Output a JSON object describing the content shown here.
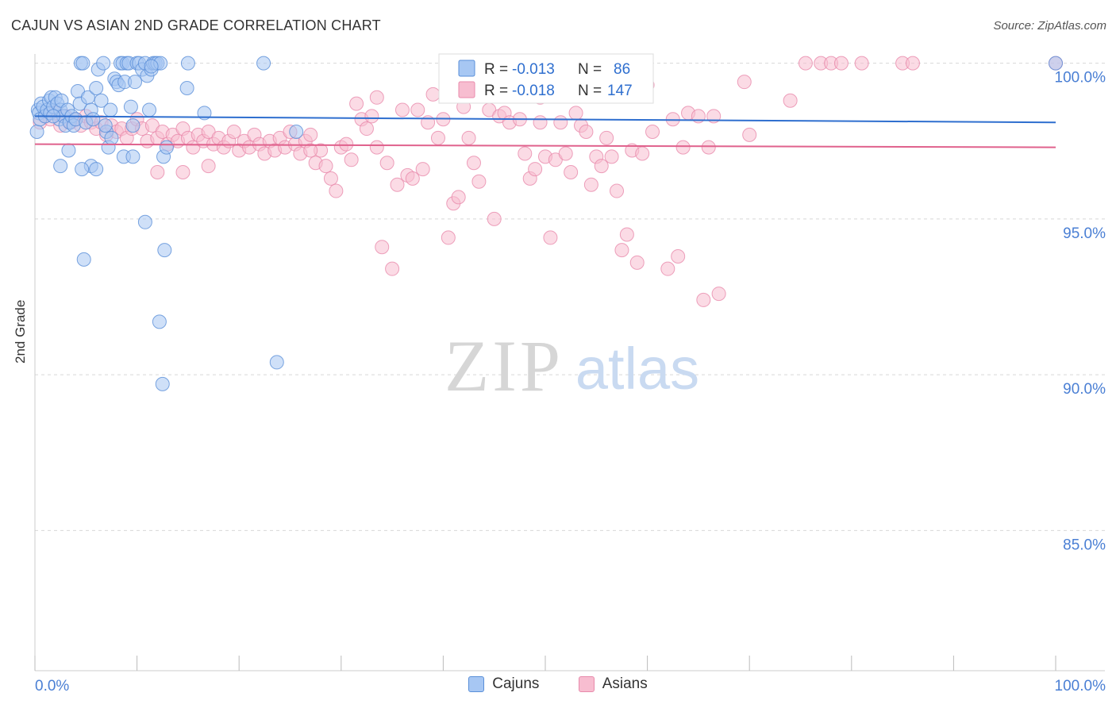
{
  "title": "CAJUN VS ASIAN 2ND GRADE CORRELATION CHART",
  "source": "Source: ZipAtlas.com",
  "watermark": {
    "zip": "ZIP",
    "atlas": "atlas"
  },
  "colors": {
    "cajuns_fill": "#a7c7f3",
    "cajuns_stroke": "#5a8fd8",
    "cajuns_line": "#2f6fcf",
    "asians_fill": "#f7bdd0",
    "asians_stroke": "#e88aab",
    "asians_line": "#e0628d",
    "axis_text": "#4a7fd4",
    "grid": "#d8d8d8"
  },
  "legend_stats": [
    {
      "r_label": "R =",
      "r_value": "-0.013",
      "n_label": "N =",
      "n_value": "86"
    },
    {
      "r_label": "R =",
      "r_value": "-0.018",
      "n_label": "N =",
      "n_value": "147"
    }
  ],
  "chart_data": {
    "type": "scatter",
    "title": "CAJUN VS ASIAN 2ND GRADE CORRELATION CHART",
    "xlabel": "",
    "ylabel": "2nd Grade",
    "xlim": [
      0,
      100
    ],
    "ylim": [
      80.5,
      100.5
    ],
    "x_tick_labels": [
      "0.0%",
      "100.0%"
    ],
    "y_ticks": [
      {
        "value": 100,
        "label": "100.0%"
      },
      {
        "value": 95,
        "label": "95.0%"
      },
      {
        "value": 90,
        "label": "90.0%"
      },
      {
        "value": 85,
        "label": "85.0%"
      }
    ],
    "grid": "horizontal dashed",
    "legend_position": "bottom",
    "series": [
      {
        "name": "Cajuns",
        "r": -0.013,
        "n": 86,
        "trend": {
          "x": [
            0,
            100
          ],
          "y": [
            98.3,
            98.1
          ]
        },
        "points": [
          [
            0.2,
            97.8
          ],
          [
            0.3,
            98.5
          ],
          [
            0.4,
            98.4
          ],
          [
            0.5,
            98.2
          ],
          [
            0.6,
            98.7
          ],
          [
            0.8,
            98.6
          ],
          [
            1.0,
            98.3
          ],
          [
            1.2,
            98.5
          ],
          [
            1.4,
            98.8
          ],
          [
            1.5,
            98.4
          ],
          [
            1.6,
            98.9
          ],
          [
            1.8,
            98.6
          ],
          [
            2.0,
            98.9
          ],
          [
            2.2,
            98.7
          ],
          [
            2.4,
            98.2
          ],
          [
            2.5,
            98.5
          ],
          [
            2.6,
            98.8
          ],
          [
            2.8,
            98.3
          ],
          [
            3.0,
            98.0
          ],
          [
            3.2,
            98.5
          ],
          [
            3.4,
            98.1
          ],
          [
            3.6,
            98.3
          ],
          [
            3.8,
            98.0
          ],
          [
            4.0,
            98.2
          ],
          [
            4.2,
            99.1
          ],
          [
            4.4,
            98.7
          ],
          [
            4.5,
            100.0
          ],
          [
            4.7,
            100.0
          ],
          [
            5.0,
            98.1
          ],
          [
            5.2,
            98.9
          ],
          [
            5.5,
            98.5
          ],
          [
            5.7,
            98.2
          ],
          [
            6.0,
            99.2
          ],
          [
            6.2,
            99.8
          ],
          [
            6.5,
            98.8
          ],
          [
            6.7,
            100.0
          ],
          [
            7.0,
            97.8
          ],
          [
            7.2,
            97.3
          ],
          [
            7.5,
            97.6
          ],
          [
            7.8,
            99.5
          ],
          [
            8.0,
            99.4
          ],
          [
            8.2,
            99.3
          ],
          [
            8.4,
            100.0
          ],
          [
            8.6,
            100.0
          ],
          [
            8.8,
            99.4
          ],
          [
            9.0,
            100.0
          ],
          [
            9.2,
            100.0
          ],
          [
            9.4,
            98.6
          ],
          [
            9.6,
            98.0
          ],
          [
            9.8,
            99.4
          ],
          [
            10.0,
            100.0
          ],
          [
            10.2,
            100.0
          ],
          [
            10.5,
            99.8
          ],
          [
            10.8,
            100.0
          ],
          [
            11.0,
            99.6
          ],
          [
            11.2,
            98.5
          ],
          [
            11.4,
            99.8
          ],
          [
            11.6,
            100.0
          ],
          [
            11.8,
            100.0
          ],
          [
            12.0,
            100.0
          ],
          [
            12.3,
            100.0
          ],
          [
            12.6,
            97.0
          ],
          [
            3.3,
            97.2
          ],
          [
            2.5,
            96.7
          ],
          [
            5.5,
            96.7
          ],
          [
            6.0,
            96.6
          ],
          [
            4.6,
            96.6
          ],
          [
            8.7,
            97.0
          ],
          [
            9.6,
            97.0
          ],
          [
            12.9,
            97.3
          ],
          [
            14.9,
            99.2
          ],
          [
            15.0,
            100.0
          ],
          [
            16.6,
            98.4
          ],
          [
            22.4,
            100.0
          ],
          [
            7.4,
            98.5
          ],
          [
            10.8,
            94.9
          ],
          [
            12.7,
            94.0
          ],
          [
            4.8,
            93.7
          ],
          [
            12.2,
            91.7
          ],
          [
            12.5,
            89.7
          ],
          [
            23.7,
            90.4
          ],
          [
            25.6,
            97.8
          ],
          [
            100.0,
            100.0
          ],
          [
            11.4,
            99.9
          ],
          [
            6.9,
            98.0
          ],
          [
            1.8,
            98.3
          ]
        ]
      },
      {
        "name": "Asians",
        "r": -0.018,
        "n": 147,
        "trend": {
          "x": [
            0,
            100
          ],
          "y": [
            97.4,
            97.3
          ]
        },
        "points": [
          [
            0.5,
            98.1
          ],
          [
            1.0,
            98.3
          ],
          [
            1.5,
            98.2
          ],
          [
            2.0,
            98.4
          ],
          [
            2.5,
            98.0
          ],
          [
            3.0,
            98.3
          ],
          [
            3.5,
            98.1
          ],
          [
            4.0,
            98.2
          ],
          [
            4.5,
            98.0
          ],
          [
            5.0,
            98.3
          ],
          [
            5.5,
            98.1
          ],
          [
            6.0,
            97.9
          ],
          [
            6.5,
            98.1
          ],
          [
            7.0,
            97.7
          ],
          [
            7.5,
            98.0
          ],
          [
            8.0,
            97.8
          ],
          [
            8.5,
            97.9
          ],
          [
            9.0,
            97.6
          ],
          [
            9.5,
            97.9
          ],
          [
            10.0,
            98.2
          ],
          [
            10.5,
            97.9
          ],
          [
            11.0,
            97.5
          ],
          [
            11.5,
            98.0
          ],
          [
            12.0,
            97.6
          ],
          [
            12.5,
            97.8
          ],
          [
            13.0,
            97.4
          ],
          [
            13.5,
            97.7
          ],
          [
            14.0,
            97.5
          ],
          [
            14.5,
            97.9
          ],
          [
            15.0,
            97.6
          ],
          [
            15.5,
            97.3
          ],
          [
            16.0,
            97.7
          ],
          [
            16.5,
            97.5
          ],
          [
            17.0,
            97.8
          ],
          [
            17.5,
            97.4
          ],
          [
            18.0,
            97.6
          ],
          [
            18.5,
            97.3
          ],
          [
            19.0,
            97.5
          ],
          [
            19.5,
            97.8
          ],
          [
            20.0,
            97.2
          ],
          [
            20.5,
            97.5
          ],
          [
            21.0,
            97.3
          ],
          [
            21.5,
            97.7
          ],
          [
            22.0,
            97.4
          ],
          [
            22.5,
            97.1
          ],
          [
            23.0,
            97.5
          ],
          [
            23.5,
            97.2
          ],
          [
            24.0,
            97.6
          ],
          [
            24.5,
            97.3
          ],
          [
            25.0,
            97.8
          ],
          [
            25.5,
            97.4
          ],
          [
            26.0,
            97.1
          ],
          [
            26.5,
            97.5
          ],
          [
            27.0,
            97.7
          ],
          [
            27.5,
            96.8
          ],
          [
            28.0,
            97.2
          ],
          [
            28.5,
            96.7
          ],
          [
            29.0,
            96.3
          ],
          [
            29.5,
            95.9
          ],
          [
            30.0,
            97.3
          ],
          [
            30.5,
            97.4
          ],
          [
            31.0,
            96.9
          ],
          [
            31.5,
            98.7
          ],
          [
            32.0,
            98.2
          ],
          [
            32.5,
            97.9
          ],
          [
            33.0,
            98.3
          ],
          [
            33.5,
            97.3
          ],
          [
            34.0,
            94.1
          ],
          [
            34.5,
            96.8
          ],
          [
            35.0,
            93.4
          ],
          [
            35.5,
            96.1
          ],
          [
            36.0,
            98.5
          ],
          [
            36.5,
            96.4
          ],
          [
            37.0,
            96.3
          ],
          [
            37.5,
            98.5
          ],
          [
            38.0,
            96.6
          ],
          [
            38.5,
            98.1
          ],
          [
            39.0,
            99.0
          ],
          [
            39.5,
            97.6
          ],
          [
            40.0,
            98.2
          ],
          [
            40.5,
            94.4
          ],
          [
            41.0,
            95.5
          ],
          [
            41.5,
            95.7
          ],
          [
            42.0,
            98.6
          ],
          [
            42.5,
            97.6
          ],
          [
            43.0,
            96.8
          ],
          [
            43.5,
            96.2
          ],
          [
            44.0,
            99.0
          ],
          [
            44.5,
            98.5
          ],
          [
            45.0,
            95.0
          ],
          [
            45.5,
            98.3
          ],
          [
            46.0,
            98.4
          ],
          [
            46.5,
            98.1
          ],
          [
            47.0,
            99.1
          ],
          [
            47.5,
            98.2
          ],
          [
            48.0,
            97.1
          ],
          [
            48.5,
            96.3
          ],
          [
            49.0,
            96.6
          ],
          [
            49.5,
            98.1
          ],
          [
            50.0,
            97.0
          ],
          [
            50.5,
            94.4
          ],
          [
            51.0,
            96.9
          ],
          [
            51.5,
            98.1
          ],
          [
            52.0,
            97.1
          ],
          [
            52.5,
            96.5
          ],
          [
            53.0,
            98.4
          ],
          [
            53.5,
            98.0
          ],
          [
            54.0,
            97.8
          ],
          [
            54.5,
            96.1
          ],
          [
            55.0,
            97.0
          ],
          [
            55.5,
            96.7
          ],
          [
            56.0,
            97.6
          ],
          [
            56.5,
            97.0
          ],
          [
            57.0,
            95.9
          ],
          [
            57.5,
            94.0
          ],
          [
            58.0,
            94.5
          ],
          [
            58.5,
            97.2
          ],
          [
            59.0,
            93.6
          ],
          [
            59.5,
            97.1
          ],
          [
            60.0,
            99.3
          ],
          [
            60.5,
            97.8
          ],
          [
            62.0,
            93.4
          ],
          [
            62.5,
            98.2
          ],
          [
            63.0,
            93.8
          ],
          [
            63.5,
            97.3
          ],
          [
            64.0,
            98.4
          ],
          [
            65.0,
            98.3
          ],
          [
            65.5,
            92.4
          ],
          [
            66.0,
            97.3
          ],
          [
            66.5,
            98.3
          ],
          [
            67.0,
            92.6
          ],
          [
            70.0,
            97.7
          ],
          [
            74.0,
            98.8
          ],
          [
            75.5,
            100.0
          ],
          [
            77.0,
            100.0
          ],
          [
            78.0,
            100.0
          ],
          [
            79.0,
            100.0
          ],
          [
            81.0,
            100.0
          ],
          [
            85.0,
            100.0
          ],
          [
            86.0,
            100.0
          ],
          [
            100.0,
            100.0
          ],
          [
            17.0,
            96.7
          ],
          [
            14.5,
            96.5
          ],
          [
            12.0,
            96.5
          ],
          [
            27.0,
            97.2
          ],
          [
            33.5,
            98.9
          ],
          [
            49.5,
            98.9
          ],
          [
            59.0,
            99.4
          ],
          [
            69.5,
            99.4
          ]
        ]
      }
    ]
  }
}
